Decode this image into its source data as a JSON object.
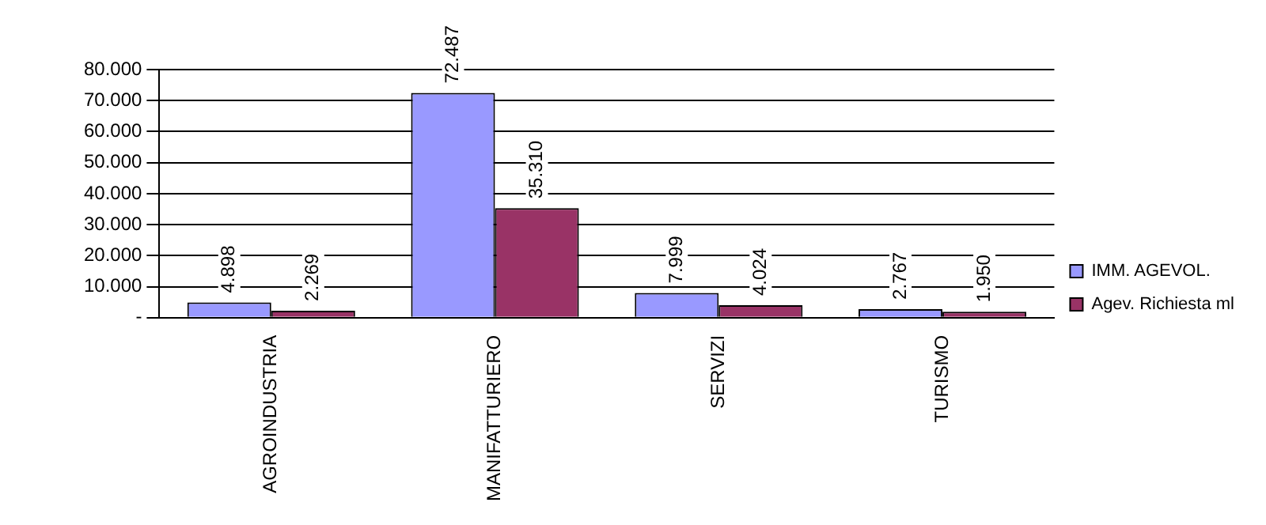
{
  "chart_data": {
    "type": "bar",
    "categories": [
      "AGROINDUSTRIA",
      "MANIFATTURIERO",
      "SERVIZI",
      "TURISMO"
    ],
    "series": [
      {
        "name": "IMM. AGEVOL.",
        "color": "#9999ff",
        "values": [
          4898,
          72487,
          7999,
          2767
        ],
        "value_labels": [
          "4.898",
          "72.487",
          "7.999",
          "2.767"
        ]
      },
      {
        "name": "Agev. Richiesta ml",
        "color": "#993366",
        "values": [
          2269,
          35310,
          4024,
          1950
        ],
        "value_labels": [
          "2.269",
          "35.310",
          "4.024",
          "1.950"
        ]
      }
    ],
    "ylim": [
      0,
      80000
    ],
    "yticks": [
      {
        "value": 0,
        "label": "-"
      },
      {
        "value": 10000,
        "label": "10.000"
      },
      {
        "value": 20000,
        "label": "20.000"
      },
      {
        "value": 30000,
        "label": "30.000"
      },
      {
        "value": 40000,
        "label": "40.000"
      },
      {
        "value": 50000,
        "label": "50.000"
      },
      {
        "value": 60000,
        "label": "60.000"
      },
      {
        "value": 70000,
        "label": "70.000"
      },
      {
        "value": 80000,
        "label": "80.000"
      }
    ],
    "grid": "y",
    "legend": "right"
  }
}
